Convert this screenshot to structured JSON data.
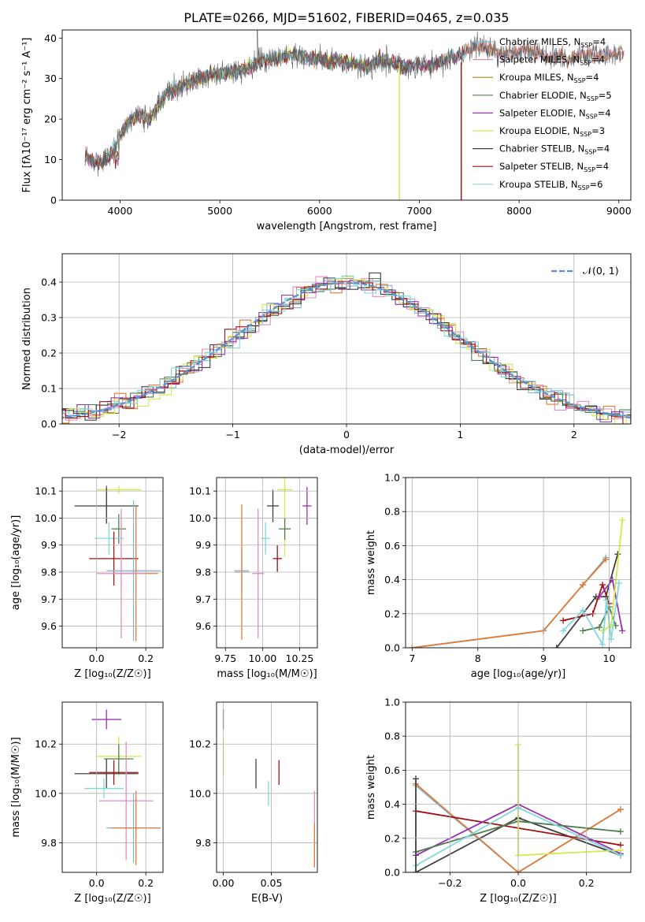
{
  "page_title": "PLATE=0266, MJD=51602, FIBERID=0465, z=0.035",
  "colors": {
    "Chabrier MILES": "#7fb8d4",
    "Salpeter MILES": "#e58cbf",
    "Kroupa MILES": "#b8860b",
    "Chabrier ELODIE": "#4f7f4f",
    "Salpeter ELODIE": "#9b30b0",
    "Kroupa ELODIE": "#d6e84a",
    "Chabrier STELIB": "#404040",
    "Salpeter STELIB": "#a01010",
    "Kroupa STELIB": "#7fd8dc",
    "Kroupa MILES line": "#e07b39",
    "normal": "#5b8fd6"
  },
  "chart_data": [
    {
      "id": "spectrum",
      "type": "line",
      "title": "PLATE=0266, MJD=51602, FIBERID=0465, z=0.035",
      "xlabel": "wavelength [Angstrom, rest frame]",
      "ylabel": "Flux [fλ10⁻¹⁷ erg cm⁻² s⁻¹ A⁻¹]",
      "xlim": [
        3420,
        9120
      ],
      "ylim": [
        0,
        42
      ],
      "xticks": [
        4000,
        5000,
        6000,
        7000,
        8000,
        9000
      ],
      "yticks": [
        0,
        10,
        20,
        30,
        40
      ],
      "grid": false,
      "legend_position": "right",
      "legend": [
        {
          "model": "Chabrier MILES",
          "label": "Chabrier MILES, N",
          "nssp": "4"
        },
        {
          "model": "Salpeter MILES",
          "label": "Salpeter MILES, N",
          "nssp": "4"
        },
        {
          "model": "Kroupa MILES",
          "label": "Kroupa MILES, N",
          "nssp": "4"
        },
        {
          "model": "Chabrier ELODIE",
          "label": "Chabrier ELODIE, N",
          "nssp": "5"
        },
        {
          "model": "Salpeter ELODIE",
          "label": "Salpeter ELODIE, N",
          "nssp": "4"
        },
        {
          "model": "Kroupa ELODIE",
          "label": "Kroupa ELODIE, N",
          "nssp": "3"
        },
        {
          "model": "Chabrier STELIB",
          "label": "Chabrier STELIB, N",
          "nssp": "4"
        },
        {
          "model": "Salpeter STELIB",
          "label": "Salpeter STELIB, N",
          "nssp": "4"
        },
        {
          "model": "Kroupa STELIB",
          "label": "Kroupa STELIB, N",
          "nssp": "6"
        }
      ],
      "legend_subscript": "SSP",
      "continuum": [
        [
          3650,
          11
        ],
        [
          3700,
          10
        ],
        [
          3800,
          9.5
        ],
        [
          3900,
          11
        ],
        [
          4000,
          16
        ],
        [
          4100,
          20
        ],
        [
          4200,
          21
        ],
        [
          4300,
          20
        ],
        [
          4400,
          24
        ],
        [
          4500,
          27
        ],
        [
          4600,
          28
        ],
        [
          4700,
          29
        ],
        [
          4800,
          30
        ],
        [
          4900,
          31
        ],
        [
          5000,
          31
        ],
        [
          5100,
          31.5
        ],
        [
          5200,
          32
        ],
        [
          5300,
          33
        ],
        [
          5400,
          34
        ],
        [
          5500,
          35
        ],
        [
          5600,
          35
        ],
        [
          5700,
          36
        ],
        [
          5800,
          35.5
        ],
        [
          5900,
          35
        ],
        [
          6000,
          35
        ],
        [
          6100,
          34
        ],
        [
          6200,
          34.5
        ],
        [
          6300,
          34
        ],
        [
          6400,
          33.5
        ],
        [
          6500,
          33
        ],
        [
          6600,
          35
        ],
        [
          6700,
          34
        ],
        [
          6800,
          33
        ],
        [
          6900,
          33
        ],
        [
          7000,
          33.5
        ],
        [
          7100,
          33
        ],
        [
          7200,
          34
        ],
        [
          7300,
          35
        ],
        [
          7400,
          35.5
        ],
        [
          7500,
          37
        ],
        [
          7600,
          38
        ],
        [
          7700,
          37.5
        ],
        [
          7800,
          36
        ],
        [
          7900,
          36
        ],
        [
          8000,
          37
        ],
        [
          8100,
          37
        ],
        [
          8200,
          36.5
        ],
        [
          8300,
          35
        ],
        [
          8400,
          36
        ],
        [
          8500,
          34
        ],
        [
          8600,
          36
        ],
        [
          8700,
          36
        ],
        [
          8800,
          35.5
        ],
        [
          8900,
          36
        ]
      ],
      "model_drops": [
        {
          "model": "Kroupa ELODIE",
          "x": 6800
        },
        {
          "model": "Kroupa MILES line",
          "x": 7420
        },
        {
          "model": "Salpeter STELIB",
          "x": 7420
        }
      ]
    },
    {
      "id": "residuals",
      "type": "histogram",
      "xlabel": "(data-model)/error",
      "ylabel": "Normed distribution",
      "xlim": [
        -2.5,
        2.5
      ],
      "ylim": [
        0,
        0.48
      ],
      "xticks": [
        -2,
        -1,
        0,
        1,
        2
      ],
      "yticks": [
        0.0,
        0.1,
        0.2,
        0.3,
        0.4
      ],
      "grid": true,
      "legend_position": "top-right",
      "legend_label": "𝒩(0, 1)",
      "bin_width": 0.1
    },
    {
      "id": "z_age",
      "type": "scatter",
      "xlabel": "Z [log₁₀(Z/Z☉)]",
      "ylabel": "age  [log₁₀(age/yr)]",
      "xlim": [
        -0.14,
        0.27
      ],
      "ylim": [
        9.52,
        10.15
      ],
      "xticks": [
        0.0,
        0.2
      ],
      "yticks": [
        9.6,
        9.7,
        9.8,
        9.9,
        10.0,
        10.1
      ],
      "grid": true,
      "points": [
        {
          "model": "Kroupa ELODIE",
          "x": 0.09,
          "y": 10.105,
          "xerr": 0.09,
          "yerr": 0.015
        },
        {
          "model": "Salpeter ELODIE",
          "x": 0.04,
          "y": 10.05,
          "xerr": 0.0,
          "yerr": 0.07
        },
        {
          "model": "Chabrier STELIB",
          "x": 0.04,
          "y": 10.045,
          "xerr": 0.13,
          "yerr": 0.065
        },
        {
          "model": "Chabrier ELODIE",
          "x": 0.09,
          "y": 9.96,
          "xerr": 0.03,
          "yerr": 0.055
        },
        {
          "model": "Kroupa STELIB",
          "x": 0.05,
          "y": 9.925,
          "xerr": 0.06,
          "yerr": 0.06
        },
        {
          "model": "Salpeter STELIB",
          "x": 0.07,
          "y": 9.85,
          "xerr": 0.1,
          "yerr": 0.1
        },
        {
          "model": "Chabrier MILES",
          "x": 0.15,
          "y": 9.805,
          "xerr": 0.11,
          "yerr": 0.26
        },
        {
          "model": "Kroupa MILES line",
          "x": 0.16,
          "y": 9.795,
          "xerr": 0.09,
          "yerr": 0.25
        },
        {
          "model": "Salpeter MILES",
          "x": 0.1,
          "y": 9.795,
          "xerr": 0.1,
          "yerr": 0.24
        }
      ]
    },
    {
      "id": "mass_age",
      "type": "scatter",
      "xlabel": "mass [log₁₀(M/M☉)]",
      "ylabel": "",
      "xlim": [
        9.69,
        10.37
      ],
      "ylim": [
        9.52,
        10.15
      ],
      "xticks": [
        9.75,
        10.0,
        10.25
      ],
      "yticks": [
        9.6,
        9.7,
        9.8,
        9.9,
        10.0,
        10.1
      ],
      "grid": true,
      "points": [
        {
          "model": "Salpeter ELODIE",
          "x": 10.3,
          "y": 10.045,
          "xerr": 0.03,
          "yerr": 0.07
        },
        {
          "model": "Kroupa ELODIE",
          "x": 10.15,
          "y": 10.105,
          "xerr": 0.05,
          "yerr": 0.25
        },
        {
          "model": "Chabrier STELIB",
          "x": 10.07,
          "y": 10.045,
          "xerr": 0.04,
          "yerr": 0.06
        },
        {
          "model": "Chabrier ELODIE",
          "x": 10.15,
          "y": 9.96,
          "xerr": 0.04,
          "yerr": 0.04
        },
        {
          "model": "Kroupa STELIB",
          "x": 10.02,
          "y": 9.925,
          "xerr": 0.03,
          "yerr": 0.06
        },
        {
          "model": "Salpeter STELIB",
          "x": 10.1,
          "y": 9.85,
          "xerr": 0.03,
          "yerr": 0.05
        },
        {
          "model": "Chabrier MILES",
          "x": 9.86,
          "y": 9.805,
          "xerr": 0.05,
          "yerr": 0.08
        },
        {
          "model": "Kroupa MILES line",
          "x": 9.86,
          "y": 9.8,
          "xerr": 0.05,
          "yerr": 0.25
        },
        {
          "model": "Salpeter MILES",
          "x": 9.97,
          "y": 9.795,
          "xerr": 0.04,
          "yerr": 0.24
        }
      ]
    },
    {
      "id": "age_weight",
      "type": "line",
      "xlabel": "age  [log₁₀(age/yr)]",
      "ylabel": "mass weight",
      "xlim": [
        6.9,
        10.33
      ],
      "ylim": [
        0,
        1
      ],
      "xticks": [
        7,
        8,
        9,
        10
      ],
      "yticks": [
        0.0,
        0.2,
        0.4,
        0.6,
        0.8,
        1.0
      ],
      "grid": true,
      "series": [
        {
          "model": "Chabrier MILES",
          "x": [
            7.0,
            9.0,
            9.6,
            9.95
          ],
          "y": [
            0.0,
            0.1,
            0.37,
            0.53
          ]
        },
        {
          "model": "Kroupa MILES line",
          "x": [
            7.0,
            9.0,
            9.6,
            9.95
          ],
          "y": [
            0.0,
            0.1,
            0.37,
            0.52
          ]
        },
        {
          "model": "Chabrier STELIB",
          "x": [
            9.2,
            9.8,
            9.95,
            10.13
          ],
          "y": [
            0.0,
            0.3,
            0.3,
            0.55
          ]
        },
        {
          "model": "Salpeter STELIB",
          "x": [
            9.3,
            9.75,
            9.9,
            10.0
          ],
          "y": [
            0.16,
            0.2,
            0.37,
            0.26
          ]
        },
        {
          "model": "Salpeter ELODIE",
          "x": [
            9.85,
            10.05,
            10.2
          ],
          "y": [
            0.3,
            0.4,
            0.1
          ]
        },
        {
          "model": "Chabrier ELODIE",
          "x": [
            9.6,
            9.85,
            10.0,
            10.1
          ],
          "y": [
            0.1,
            0.12,
            0.24,
            0.13
          ]
        },
        {
          "model": "Kroupa ELODIE",
          "x": [
            9.9,
            10.03,
            10.2
          ],
          "y": [
            0.1,
            0.13,
            0.75
          ]
        },
        {
          "model": "Kroupa STELIB",
          "x": [
            9.3,
            9.6,
            9.9,
            9.96,
            10.03,
            10.15
          ],
          "y": [
            0.1,
            0.22,
            0.02,
            0.28,
            0.05,
            0.38
          ]
        }
      ]
    },
    {
      "id": "z_mass",
      "type": "scatter",
      "xlabel": "Z [log₁₀(Z/Z☉)]",
      "ylabel": "mass [log₁₀(M/M☉)]",
      "xlim": [
        -0.14,
        0.27
      ],
      "ylim": [
        9.68,
        10.37
      ],
      "xticks": [
        0.0,
        0.2
      ],
      "yticks": [
        9.8,
        10.0,
        10.2
      ],
      "grid": true,
      "points": [
        {
          "model": "Salpeter ELODIE",
          "x": 0.04,
          "y": 10.3,
          "xerr": 0.06,
          "yerr": 0.04
        },
        {
          "model": "Kroupa ELODIE",
          "x": 0.09,
          "y": 10.15,
          "xerr": 0.09,
          "yerr": 0.08
        },
        {
          "model": "Chabrier ELODIE",
          "x": 0.09,
          "y": 10.14,
          "xerr": 0.06,
          "yerr": 0.06
        },
        {
          "model": "Chabrier STELIB",
          "x": 0.04,
          "y": 10.08,
          "xerr": 0.13,
          "yerr": 0.06
        },
        {
          "model": "Salpeter STELIB",
          "x": 0.07,
          "y": 10.085,
          "xerr": 0.1,
          "yerr": 0.05
        },
        {
          "model": "Kroupa STELIB",
          "x": 0.03,
          "y": 10.02,
          "xerr": 0.08,
          "yerr": 0.04
        },
        {
          "model": "Salpeter MILES",
          "x": 0.12,
          "y": 9.97,
          "xerr": 0.11,
          "yerr": 0.24
        },
        {
          "model": "Chabrier MILES",
          "x": 0.15,
          "y": 9.86,
          "xerr": 0.11,
          "yerr": 0.14
        },
        {
          "model": "Kroupa MILES line",
          "x": 0.16,
          "y": 9.86,
          "xerr": 0.1,
          "yerr": 0.15
        }
      ]
    },
    {
      "id": "ebv_mass",
      "type": "scatter",
      "xlabel": "E(B-V)",
      "ylabel": "",
      "xlim": [
        -0.007,
        0.098
      ],
      "ylim": [
        9.68,
        10.37
      ],
      "xticks": [
        0.0,
        0.05
      ],
      "yticks": [
        9.8,
        10.0,
        10.2
      ],
      "grid": true,
      "points": [
        {
          "model": "Salpeter ELODIE",
          "x": 0.0,
          "y": 10.3,
          "xerr": 0.0,
          "yerr": 0.04
        },
        {
          "model": "Kroupa ELODIE",
          "x": 0.0,
          "y": 10.15,
          "xerr": 0.0,
          "yerr": 0.08
        },
        {
          "model": "Chabrier STELIB",
          "x": 0.034,
          "y": 10.08,
          "xerr": 0.0,
          "yerr": 0.06
        },
        {
          "model": "Salpeter STELIB",
          "x": 0.058,
          "y": 10.085,
          "xerr": 0.0,
          "yerr": 0.05
        },
        {
          "model": "Kroupa STELIB",
          "x": 0.047,
          "y": 10.0,
          "xerr": 0.0,
          "yerr": 0.05
        },
        {
          "model": "Salpeter MILES",
          "x": 0.095,
          "y": 9.86,
          "xerr": 0.0,
          "yerr": 0.15
        },
        {
          "model": "Kroupa MILES line",
          "x": 0.095,
          "y": 9.79,
          "xerr": 0.0,
          "yerr": 0.09
        }
      ]
    },
    {
      "id": "z_weight",
      "type": "line",
      "xlabel": "Z [log₁₀(Z/Z☉)]",
      "ylabel": "mass weight",
      "xlim": [
        -0.33,
        0.33
      ],
      "ylim": [
        0,
        1
      ],
      "xticks": [
        -0.2,
        0.0,
        0.2
      ],
      "yticks": [
        0.0,
        0.2,
        0.4,
        0.6,
        0.8,
        1.0
      ],
      "grid": true,
      "series": [
        {
          "model": "Chabrier MILES",
          "x": [
            -0.3,
            0.0,
            0.3
          ],
          "y": [
            0.51,
            0.0,
            0.37
          ]
        },
        {
          "model": "Kroupa MILES line",
          "x": [
            -0.3,
            0.0,
            0.3
          ],
          "y": [
            0.52,
            0.0,
            0.37
          ]
        },
        {
          "model": "Chabrier STELIB",
          "x": [
            -0.3,
            0.0,
            0.3
          ],
          "y": [
            0.0,
            0.32,
            0.1
          ]
        },
        {
          "model": "Salpeter STELIB",
          "x": [
            -0.3,
            0.3
          ],
          "y": [
            0.36,
            0.16
          ]
        },
        {
          "model": "Salpeter ELODIE",
          "x": [
            -0.3,
            0.0,
            0.3
          ],
          "y": [
            0.1,
            0.4,
            0.11
          ]
        },
        {
          "model": "Chabrier ELODIE",
          "x": [
            -0.3,
            0.0,
            0.3
          ],
          "y": [
            0.12,
            0.3,
            0.24
          ]
        },
        {
          "model": "Kroupa ELODIE",
          "x": [
            0.0,
            0.0,
            0.3
          ],
          "y": [
            0.75,
            0.1,
            0.13
          ]
        },
        {
          "model": "Kroupa STELIB",
          "x": [
            -0.3,
            0.0,
            0.3
          ],
          "y": [
            0.04,
            0.38,
            0.1
          ]
        },
        {
          "model": "Chabrier STELIB",
          "x": [
            -0.3,
            -0.3
          ],
          "y": [
            0.55,
            0.0
          ]
        }
      ]
    }
  ]
}
